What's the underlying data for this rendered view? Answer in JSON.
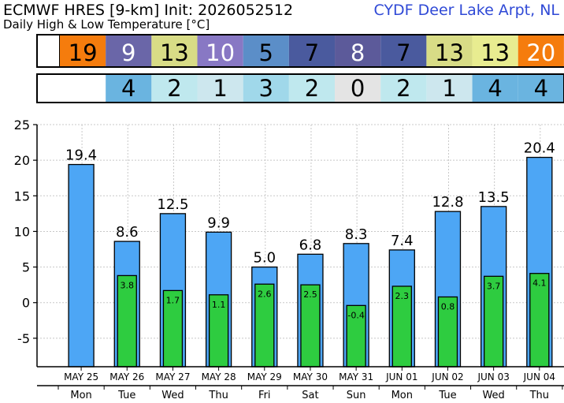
{
  "header": {
    "title": "ECMWF HRES [9-km] Init: 2026052512",
    "subtitle": "Daily High & Low Temperature [°C]",
    "station": "CYDF Deer Lake Arpt, NL"
  },
  "high_row": {
    "values": [
      "19",
      "9",
      "13",
      "10",
      "5",
      "7",
      "8",
      "7",
      "13",
      "13",
      "20"
    ],
    "colors": [
      "#f57c0d",
      "#6a66a8",
      "#d8dc86",
      "#8878c4",
      "#5b8ec8",
      "#4a5a9e",
      "#5c5a9a",
      "#4a5a9e",
      "#d8dc86",
      "#e8ec90",
      "#f57c0d"
    ],
    "text_colors": [
      "#000000",
      "#ffffff",
      "#000000",
      "#ffffff",
      "#000000",
      "#000000",
      "#ffffff",
      "#000000",
      "#000000",
      "#000000",
      "#ffffff"
    ]
  },
  "low_row": {
    "values": [
      "4",
      "2",
      "1",
      "3",
      "2",
      "0",
      "2",
      "1",
      "4",
      "4"
    ],
    "colors": [
      "#6ab4e0",
      "#bfe8ee",
      "#cde7ee",
      "#a0d8ea",
      "#bfe8ee",
      "#e4e4e4",
      "#bfe8ee",
      "#cde7ee",
      "#6ab4e0",
      "#6ab4e0"
    ]
  },
  "chart_data": {
    "type": "bar",
    "categories": [
      "MAY 25",
      "MAY 26",
      "MAY 27",
      "MAY 28",
      "MAY 29",
      "MAY 30",
      "MAY 31",
      "JUN 01",
      "JUN 02",
      "JUN 03",
      "JUN 04"
    ],
    "days": [
      "Mon",
      "Tue",
      "Wed",
      "Thu",
      "Fri",
      "Sat",
      "Sun",
      "Mon",
      "Tue",
      "Wed",
      "Thu"
    ],
    "series": [
      {
        "values": [
          19.4,
          8.6,
          12.5,
          9.9,
          5.0,
          6.8,
          8.3,
          7.4,
          12.8,
          13.5,
          20.4
        ],
        "labels": [
          "19.4",
          "8.6",
          "12.5",
          "9.9",
          "5.0",
          "6.8",
          "8.3",
          "7.4",
          "12.8",
          "13.5",
          "20.4"
        ],
        "color": "#4da6f5"
      },
      {
        "values": [
          null,
          3.8,
          1.7,
          1.1,
          2.6,
          2.5,
          -0.4,
          2.3,
          0.8,
          3.7,
          4.1
        ],
        "labels": [
          "",
          "3.8",
          "1.7",
          "1.1",
          "2.6",
          "2.5",
          "-0.4",
          "2.3",
          "0.8",
          "3.7",
          "4.1"
        ],
        "color": "#2ecc40"
      }
    ],
    "yticks": [
      25,
      20,
      15,
      10,
      5,
      0,
      -5
    ],
    "ytick_labels": [
      "25",
      "20",
      "15",
      "10",
      "5",
      "0",
      "-5"
    ],
    "ylim": [
      -9,
      25
    ],
    "grid": true,
    "xlabel": "",
    "ylabel": ""
  }
}
